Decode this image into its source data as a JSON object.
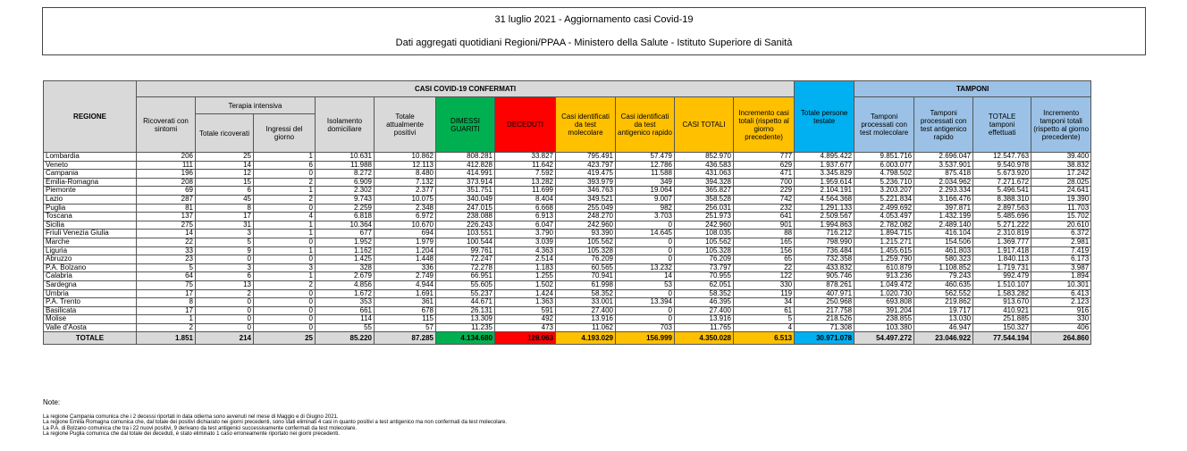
{
  "header": {
    "title": "31 luglio 2021 - Aggiornamento casi Covid-19",
    "subtitle": "Dati aggregati quotidiani Regioni/PPAA - Ministero della Salute - Istituto Superiore di Sanità"
  },
  "table": {
    "group_casi": "CASI COVID-19 CONFERMATI",
    "group_terapia": "Terapia intensiva",
    "group_tamponi": "TAMPONI",
    "columns": [
      "REGIONE",
      "Ricoverati con sintomi",
      "Totale ricoverati",
      "Ingressi del giorno",
      "Isolamento domiciliare",
      "Totale attualmente positivi",
      "DIMESSI GUARITI",
      "DECEDUTI",
      "Casi identificati da test molecolare",
      "Casi identificati da test antigenico rapido",
      "CASI TOTALI",
      "Incremento casi totali (rispetto al giorno precedente)",
      "Totale persone testate",
      "Tamponi processati con test molecolare",
      "Tamponi processati con test antigenico rapido",
      "TOTALE tamponi effettuati",
      "Incremento tamponi totali (rispetto al giorno precedente)"
    ],
    "rows": [
      [
        "Lombardia",
        "206",
        "25",
        "1",
        "10.631",
        "10.862",
        "808.281",
        "33.827",
        "795.491",
        "57.479",
        "852.970",
        "777",
        "4.895.422",
        "9.851.716",
        "2.696.047",
        "12.547.763",
        "39.400"
      ],
      [
        "Veneto",
        "111",
        "14",
        "6",
        "11.988",
        "12.113",
        "412.828",
        "11.642",
        "423.797",
        "12.786",
        "436.583",
        "629",
        "1.937.677",
        "6.003.077",
        "3.537.901",
        "9.540.978",
        "38.832"
      ],
      [
        "Campania",
        "196",
        "12",
        "0",
        "8.272",
        "8.480",
        "414.991",
        "7.592",
        "419.475",
        "11.588",
        "431.063",
        "471",
        "3.345.829",
        "4.798.502",
        "875.418",
        "5.673.920",
        "17.242"
      ],
      [
        "Emilia-Romagna",
        "208",
        "15",
        "2",
        "6.909",
        "7.132",
        "373.914",
        "13.282",
        "393.979",
        "349",
        "394.328",
        "700",
        "1.959.614",
        "5.236.710",
        "2.034.962",
        "7.271.672",
        "28.025"
      ],
      [
        "Piemonte",
        "69",
        "6",
        "1",
        "2.302",
        "2.377",
        "351.751",
        "11.699",
        "346.763",
        "19.064",
        "365.827",
        "229",
        "2.104.191",
        "3.203.207",
        "2.293.334",
        "5.496.541",
        "24.641"
      ],
      [
        "Lazio",
        "287",
        "45",
        "2",
        "9.743",
        "10.075",
        "340.049",
        "8.404",
        "349.521",
        "9.007",
        "358.528",
        "742",
        "4.564.368",
        "5.221.834",
        "3.166.476",
        "8.388.310",
        "19.390"
      ],
      [
        "Puglia",
        "81",
        "8",
        "0",
        "2.259",
        "2.348",
        "247.015",
        "6.668",
        "255.049",
        "982",
        "256.031",
        "232",
        "1.291.133",
        "2.499.692",
        "397.871",
        "2.897.563",
        "11.703"
      ],
      [
        "Toscana",
        "137",
        "17",
        "4",
        "6.818",
        "6.972",
        "238.088",
        "6.913",
        "248.270",
        "3.703",
        "251.973",
        "641",
        "2.509.567",
        "4.053.497",
        "1.432.199",
        "5.485.696",
        "15.702"
      ],
      [
        "Sicilia",
        "275",
        "31",
        "1",
        "10.364",
        "10.670",
        "226.243",
        "6.047",
        "242.960",
        "0",
        "242.960",
        "901",
        "1.994.863",
        "2.782.082",
        "2.489.140",
        "5.271.222",
        "20.610"
      ],
      [
        "Friuli Venezia Giulia",
        "14",
        "3",
        "1",
        "677",
        "694",
        "103.551",
        "3.790",
        "93.390",
        "14.645",
        "108.035",
        "88",
        "716.212",
        "1.894.715",
        "416.104",
        "2.310.819",
        "6.372"
      ],
      [
        "Marche",
        "22",
        "5",
        "0",
        "1.952",
        "1.979",
        "100.544",
        "3.039",
        "105.562",
        "0",
        "105.562",
        "165",
        "798.990",
        "1.215.271",
        "154.506",
        "1.369.777",
        "2.981"
      ],
      [
        "Liguria",
        "33",
        "9",
        "1",
        "1.162",
        "1.204",
        "99.761",
        "4.363",
        "105.328",
        "0",
        "105.328",
        "156",
        "736.484",
        "1.455.615",
        "461.803",
        "1.917.418",
        "7.419"
      ],
      [
        "Abruzzo",
        "23",
        "0",
        "0",
        "1.425",
        "1.448",
        "72.247",
        "2.514",
        "76.209",
        "0",
        "76.209",
        "65",
        "732.358",
        "1.259.790",
        "580.323",
        "1.840.113",
        "6.173"
      ],
      [
        "P.A. Bolzano",
        "5",
        "3",
        "3",
        "328",
        "336",
        "72.278",
        "1.183",
        "60.565",
        "13.232",
        "73.797",
        "22",
        "433.832",
        "610.879",
        "1.108.852",
        "1.719.731",
        "3.987"
      ],
      [
        "Calabria",
        "64",
        "6",
        "1",
        "2.679",
        "2.749",
        "66.951",
        "1.255",
        "70.941",
        "14",
        "70.955",
        "122",
        "905.746",
        "913.236",
        "79.243",
        "992.479",
        "1.894"
      ],
      [
        "Sardegna",
        "75",
        "13",
        "2",
        "4.856",
        "4.944",
        "55.605",
        "1.502",
        "61.998",
        "53",
        "62.051",
        "330",
        "878.261",
        "1.049.472",
        "460.635",
        "1.510.107",
        "10.301"
      ],
      [
        "Umbria",
        "17",
        "2",
        "0",
        "1.672",
        "1.691",
        "55.237",
        "1.424",
        "58.352",
        "0",
        "58.352",
        "119",
        "407.971",
        "1.020.730",
        "562.552",
        "1.583.282",
        "6.413"
      ],
      [
        "P.A. Trento",
        "8",
        "0",
        "0",
        "353",
        "361",
        "44.671",
        "1.363",
        "33.001",
        "13.394",
        "46.395",
        "34",
        "250.968",
        "693.808",
        "219.862",
        "913.670",
        "2.123"
      ],
      [
        "Basilicata",
        "17",
        "0",
        "0",
        "661",
        "678",
        "26.131",
        "591",
        "27.400",
        "0",
        "27.400",
        "61",
        "217.758",
        "391.204",
        "19.717",
        "410.921",
        "916"
      ],
      [
        "Molise",
        "1",
        "0",
        "0",
        "114",
        "115",
        "13.309",
        "492",
        "13.916",
        "0",
        "13.916",
        "5",
        "218.526",
        "238.855",
        "13.030",
        "251.885",
        "330"
      ],
      [
        "Valle d'Aosta",
        "2",
        "0",
        "0",
        "55",
        "57",
        "11.235",
        "473",
        "11.062",
        "703",
        "11.765",
        "4",
        "71.308",
        "103.380",
        "46.947",
        "150.327",
        "406"
      ]
    ],
    "total": [
      "TOTALE",
      "1.851",
      "214",
      "25",
      "85.220",
      "87.285",
      "4.134.680",
      "128.063",
      "4.193.029",
      "156.999",
      "4.350.028",
      "6.513",
      "30.971.078",
      "54.497.272",
      "23.046.922",
      "77.544.194",
      "264.860"
    ]
  },
  "notes": {
    "label": "Note:",
    "lines": [
      "La regione Campania comunica che i 2 decessi riportati in data odierna sono avvenuti nel mese di Maggio e di Giugno 2021.",
      "La regione Emilia Romagna comunica che, dal totale dei positivi dichiarato nei giorni precedenti, sono stati eliminati 4 casi in quanto positivi a test antigenico ma non confermati da test molecolare.",
      "La P.A. di Bolzano comunica che tra i 22 nuovi positivi, 9 derivano da test antigenici successivamente confermati da test molecolare.",
      "La regione Puglia comunica che dal totale dei deceduti, è stato eliminato 1 caso erroneamente riportato nei giorni precedenti."
    ]
  }
}
